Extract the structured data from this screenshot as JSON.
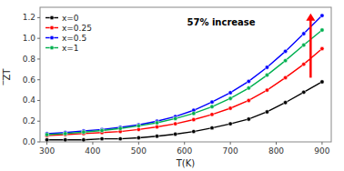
{
  "chart_data": {
    "type": "line",
    "x_label": "T(K)",
    "y_label": "̅ZT",
    "x": [
      300,
      340,
      380,
      420,
      460,
      500,
      540,
      580,
      620,
      660,
      700,
      740,
      780,
      820,
      860,
      900
    ],
    "series": [
      {
        "name": "x=0",
        "color": "black",
        "values": [
          0.02,
          0.02,
          0.02,
          0.03,
          0.03,
          0.04,
          0.055,
          0.075,
          0.1,
          0.135,
          0.175,
          0.22,
          0.29,
          0.38,
          0.48,
          0.58
        ]
      },
      {
        "name": "x=0.25",
        "color": "red",
        "values": [
          0.06,
          0.07,
          0.08,
          0.09,
          0.1,
          0.12,
          0.145,
          0.175,
          0.215,
          0.265,
          0.325,
          0.4,
          0.5,
          0.62,
          0.75,
          0.9
        ]
      },
      {
        "name": "x=0.5",
        "color": "blue",
        "values": [
          0.08,
          0.09,
          0.105,
          0.12,
          0.14,
          0.165,
          0.2,
          0.245,
          0.305,
          0.385,
          0.475,
          0.585,
          0.72,
          0.875,
          1.045,
          1.22
        ]
      },
      {
        "name": "x=1",
        "color": "#00b050",
        "values": [
          0.07,
          0.08,
          0.095,
          0.11,
          0.13,
          0.155,
          0.185,
          0.225,
          0.275,
          0.34,
          0.42,
          0.52,
          0.645,
          0.785,
          0.935,
          1.08
        ]
      }
    ],
    "xlim": [
      285,
      920
    ],
    "ylim": [
      0.0,
      1.3
    ],
    "xticks": [
      300,
      400,
      500,
      600,
      700,
      800,
      900
    ],
    "yticks": [
      {
        "value": 0,
        "label": "0.0"
      },
      0.2,
      0.4,
      0.6,
      0.8,
      {
        "value": 1,
        "label": "1.0"
      },
      1.2
    ],
    "marker": "circle",
    "legend": "upper left",
    "grid": false,
    "annotations": [
      {
        "text": "57% increase",
        "x": 680,
        "y": 1.12
      },
      {
        "type": "arrow",
        "x": 875,
        "y_start": 0.62,
        "y_end": 1.24,
        "color": "red"
      }
    ]
  }
}
